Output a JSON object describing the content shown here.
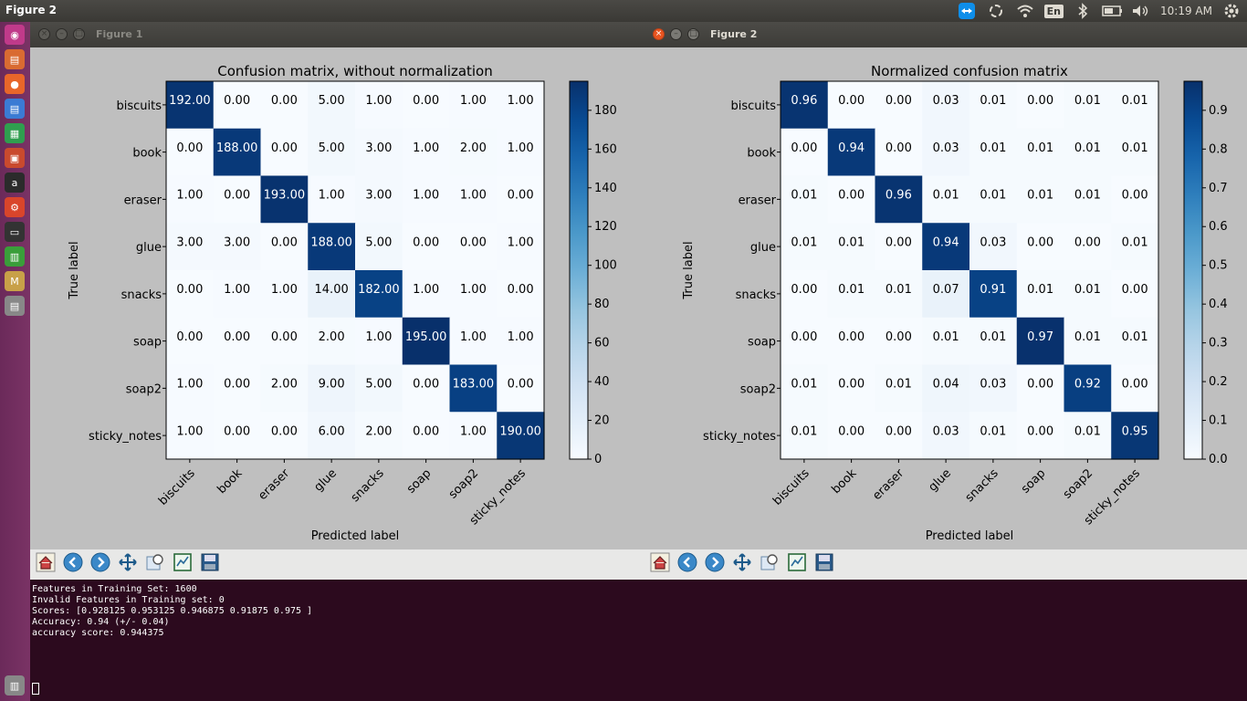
{
  "top_panel": {
    "title": "Figure 2",
    "language": "En",
    "clock": "10:19 AM"
  },
  "launcher": {
    "items": [
      "dash-icon",
      "files-icon",
      "firefox-icon",
      "writer-icon",
      "calc-icon",
      "impress-icon",
      "amazon-icon",
      "settings-icon",
      "terminal-icon",
      "system-monitor-icon",
      "matlab-icon",
      "app-icon",
      "trash-icon"
    ]
  },
  "terminal": {
    "lines": [
      "Features in Training Set: 1600",
      "Invalid Features in Training set: 0",
      "Scores: [0.928125 0.953125 0.946875 0.91875  0.975   ]",
      "Accuracy: 0.94 (+/- 0.04)",
      "accuracy score: 0.944375"
    ]
  },
  "figure1": {
    "window_title": "Figure 1"
  },
  "figure2": {
    "window_title": "Figure 2"
  },
  "toolbar": [
    "home-icon",
    "back-icon",
    "forward-icon",
    "pan-icon",
    "zoom-icon",
    "subplots-icon",
    "save-icon"
  ],
  "colors": {
    "cmap_low": "#f7fbff",
    "cmap_high": "#08306b",
    "terminal_bg": "#2c0a1e",
    "launcher_bg": "#7a3365"
  },
  "chart_data": [
    {
      "type": "heatmap",
      "title": "Confusion matrix, without normalization",
      "xlabel": "Predicted label",
      "ylabel": "True label",
      "categories": [
        "biscuits",
        "book",
        "eraser",
        "glue",
        "snacks",
        "soap",
        "soap2",
        "sticky_notes"
      ],
      "decimals": 2,
      "colorbar": {
        "min": 0,
        "max": 195,
        "ticks": [
          0,
          20,
          40,
          60,
          80,
          100,
          120,
          140,
          160,
          180
        ]
      },
      "values": [
        [
          192,
          0,
          0,
          5,
          1,
          0,
          1,
          1
        ],
        [
          0,
          188,
          0,
          5,
          3,
          1,
          2,
          1
        ],
        [
          1,
          0,
          193,
          1,
          3,
          1,
          1,
          0
        ],
        [
          3,
          3,
          0,
          188,
          5,
          0,
          0,
          1
        ],
        [
          0,
          1,
          1,
          14,
          182,
          1,
          1,
          0
        ],
        [
          0,
          0,
          0,
          2,
          1,
          195,
          1,
          1
        ],
        [
          1,
          0,
          2,
          9,
          5,
          0,
          183,
          0
        ],
        [
          1,
          0,
          0,
          6,
          2,
          0,
          1,
          190
        ]
      ]
    },
    {
      "type": "heatmap",
      "title": "Normalized confusion matrix",
      "xlabel": "Predicted label",
      "ylabel": "True label",
      "categories": [
        "biscuits",
        "book",
        "eraser",
        "glue",
        "snacks",
        "soap",
        "soap2",
        "sticky_notes"
      ],
      "decimals": 2,
      "colorbar": {
        "min": 0,
        "max": 0.975,
        "ticks": [
          0.0,
          0.1,
          0.2,
          0.3,
          0.4,
          0.5,
          0.6,
          0.7,
          0.8,
          0.9
        ]
      },
      "values": [
        [
          0.96,
          0.0,
          0.0,
          0.03,
          0.01,
          0.0,
          0.01,
          0.01
        ],
        [
          0.0,
          0.94,
          0.0,
          0.03,
          0.01,
          0.01,
          0.01,
          0.01
        ],
        [
          0.01,
          0.0,
          0.96,
          0.01,
          0.01,
          0.01,
          0.01,
          0.0
        ],
        [
          0.01,
          0.01,
          0.0,
          0.94,
          0.03,
          0.0,
          0.0,
          0.01
        ],
        [
          0.0,
          0.01,
          0.01,
          0.07,
          0.91,
          0.01,
          0.01,
          0.0
        ],
        [
          0.0,
          0.0,
          0.0,
          0.01,
          0.01,
          0.97,
          0.01,
          0.01
        ],
        [
          0.01,
          0.0,
          0.01,
          0.04,
          0.03,
          0.0,
          0.92,
          0.0
        ],
        [
          0.01,
          0.0,
          0.0,
          0.03,
          0.01,
          0.0,
          0.01,
          0.95
        ]
      ]
    }
  ]
}
